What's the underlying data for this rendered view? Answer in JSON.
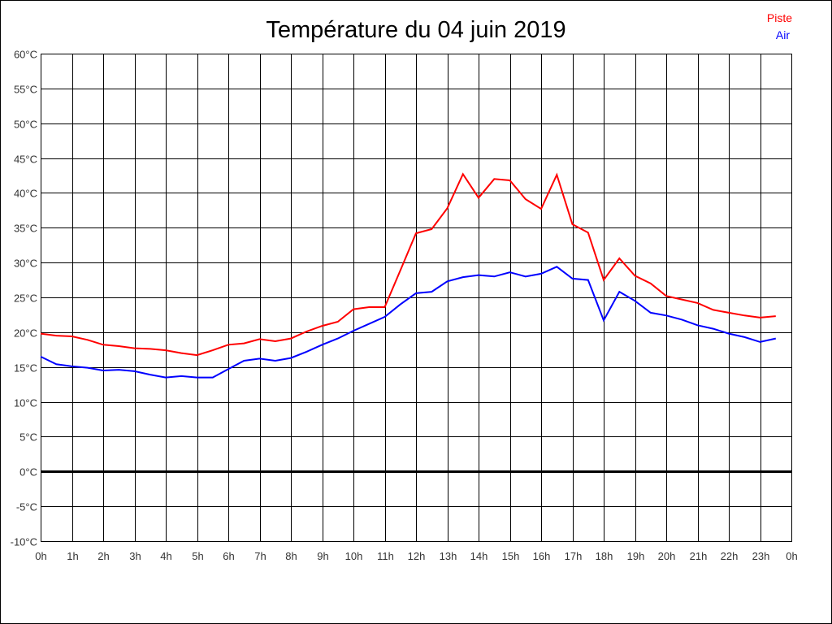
{
  "chart_data": {
    "type": "line",
    "title": "Température du 04 juin 2019",
    "xlabel": "",
    "ylabel": "",
    "xlim": [
      0,
      24
    ],
    "ylim": [
      -10,
      60
    ],
    "grid": true,
    "legend_position": "top-right",
    "x_ticks": [
      "0h",
      "1h",
      "2h",
      "3h",
      "4h",
      "5h",
      "6h",
      "7h",
      "8h",
      "9h",
      "10h",
      "11h",
      "12h",
      "13h",
      "14h",
      "15h",
      "16h",
      "17h",
      "18h",
      "19h",
      "20h",
      "21h",
      "22h",
      "23h",
      "0h"
    ],
    "y_ticks": [
      "60°C",
      "55°C",
      "50°C",
      "45°C",
      "40°C",
      "35°C",
      "30°C",
      "25°C",
      "20°C",
      "15°C",
      "10°C",
      "5°C",
      "0°C",
      "-5°C",
      "-10°C"
    ],
    "x": [
      0,
      0.5,
      1,
      1.5,
      2,
      2.5,
      3,
      3.5,
      4,
      4.5,
      5,
      5.5,
      6,
      6.5,
      7,
      7.5,
      8,
      8.5,
      9,
      9.5,
      10,
      10.5,
      11,
      11.5,
      12,
      12.5,
      13,
      13.5,
      14,
      14.5,
      15,
      15.5,
      16,
      16.5,
      17,
      17.5,
      18,
      18.5,
      19,
      19.5,
      20,
      20.5,
      21,
      21.5,
      22,
      22.5,
      23,
      23.5
    ],
    "series": [
      {
        "name": "Piste",
        "color": "#ff0000",
        "values": [
          19.8,
          19.5,
          19.4,
          18.9,
          18.2,
          18.0,
          17.7,
          17.6,
          17.4,
          17.0,
          16.7,
          17.4,
          18.2,
          18.4,
          19.0,
          18.7,
          19.1,
          20.1,
          20.9,
          21.5,
          23.3,
          23.6,
          23.6,
          28.9,
          34.2,
          34.8,
          37.8,
          42.7,
          39.3,
          42.0,
          41.8,
          39.1,
          37.7,
          42.6,
          35.5,
          34.3,
          27.5,
          30.6,
          28.1,
          27.0,
          25.2,
          24.7,
          24.2,
          23.2,
          22.8,
          22.4,
          22.1,
          22.3
        ]
      },
      {
        "name": "Air",
        "color": "#0000ff",
        "values": [
          16.5,
          15.4,
          15.1,
          14.9,
          14.5,
          14.6,
          14.4,
          13.9,
          13.5,
          13.7,
          13.5,
          13.5,
          14.7,
          15.9,
          16.2,
          15.9,
          16.3,
          17.2,
          18.2,
          19.1,
          20.2,
          21.2,
          22.2,
          24.0,
          25.6,
          25.8,
          27.3,
          27.9,
          28.2,
          28.0,
          28.6,
          28.0,
          28.4,
          29.4,
          27.7,
          27.5,
          21.7,
          25.8,
          24.5,
          22.8,
          22.4,
          21.8,
          21.0,
          20.5,
          19.8,
          19.3,
          18.6,
          19.1
        ]
      }
    ]
  }
}
